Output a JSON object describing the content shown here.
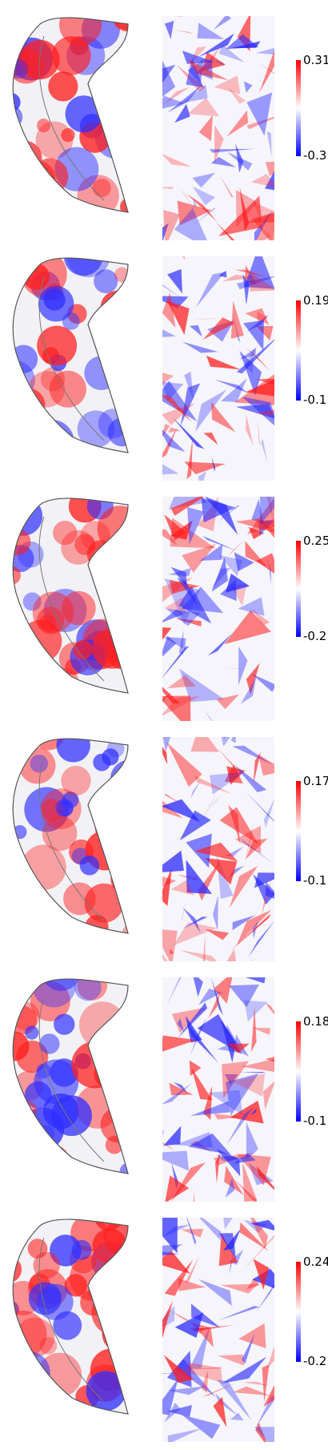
{
  "colormap": {
    "high": "#ff0000",
    "mid": "#ffffff",
    "low": "#0000ff"
  },
  "panels": [
    {
      "max_label": "0.31",
      "min_label": "-0.3"
    },
    {
      "max_label": "0.19",
      "min_label": "-0.1"
    },
    {
      "max_label": "0.25",
      "min_label": "-0.2"
    },
    {
      "max_label": "0.17",
      "min_label": "-0.1"
    },
    {
      "max_label": "0.18",
      "min_label": "-0.1"
    },
    {
      "max_label": "0.24",
      "min_label": "-0.2"
    }
  ]
}
